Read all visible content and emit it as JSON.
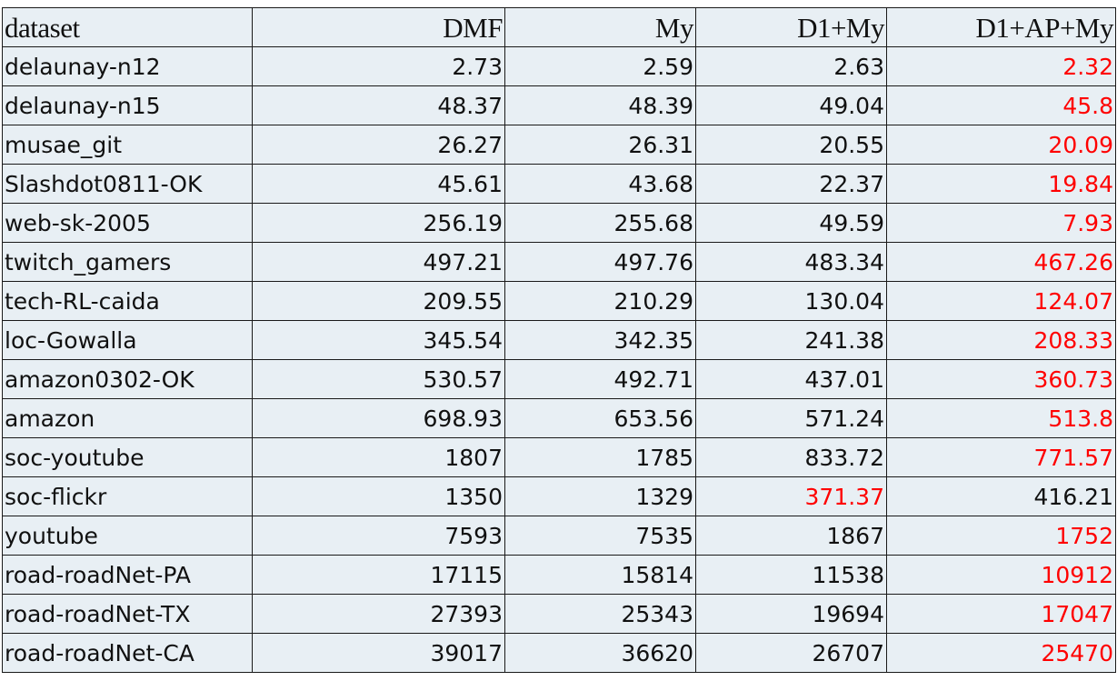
{
  "table": {
    "headers": [
      "dataset",
      "DMF",
      "My",
      "D1+My",
      "D1+AP+My"
    ],
    "rows": [
      {
        "dataset": "delaunay-n12",
        "values": [
          "2.73",
          "2.59",
          "2.63",
          "2.32"
        ],
        "best_col": 3
      },
      {
        "dataset": "delaunay-n15",
        "values": [
          "48.37",
          "48.39",
          "49.04",
          "45.8"
        ],
        "best_col": 3
      },
      {
        "dataset": "musae_git",
        "values": [
          "26.27",
          "26.31",
          "20.55",
          "20.09"
        ],
        "best_col": 3
      },
      {
        "dataset": "Slashdot0811-OK",
        "values": [
          "45.61",
          "43.68",
          "22.37",
          "19.84"
        ],
        "best_col": 3
      },
      {
        "dataset": "web-sk-2005",
        "values": [
          "256.19",
          "255.68",
          "49.59",
          "7.93"
        ],
        "best_col": 3
      },
      {
        "dataset": "twitch_gamers",
        "values": [
          "497.21",
          "497.76",
          "483.34",
          "467.26"
        ],
        "best_col": 3
      },
      {
        "dataset": "tech-RL-caida",
        "values": [
          "209.55",
          "210.29",
          "130.04",
          "124.07"
        ],
        "best_col": 3
      },
      {
        "dataset": "loc-Gowalla",
        "values": [
          "345.54",
          "342.35",
          "241.38",
          "208.33"
        ],
        "best_col": 3
      },
      {
        "dataset": "amazon0302-OK",
        "values": [
          "530.57",
          "492.71",
          "437.01",
          "360.73"
        ],
        "best_col": 3
      },
      {
        "dataset": "amazon",
        "values": [
          "698.93",
          "653.56",
          "571.24",
          "513.8"
        ],
        "best_col": 3
      },
      {
        "dataset": "soc-youtube",
        "values": [
          "1807",
          "1785",
          "833.72",
          "771.57"
        ],
        "best_col": 3
      },
      {
        "dataset": "soc-flickr",
        "values": [
          "1350",
          "1329",
          "371.37",
          "416.21"
        ],
        "best_col": 2
      },
      {
        "dataset": "youtube",
        "values": [
          "7593",
          "7535",
          "1867",
          "1752"
        ],
        "best_col": 3
      },
      {
        "dataset": "road-roadNet-PA",
        "values": [
          "17115",
          "15814",
          "11538",
          "10912"
        ],
        "best_col": 3
      },
      {
        "dataset": "road-roadNet-TX",
        "values": [
          "27393",
          "25343",
          "19694",
          "17047"
        ],
        "best_col": 3
      },
      {
        "dataset": "road-roadNet-CA",
        "values": [
          "39017",
          "36620",
          "26707",
          "25470"
        ],
        "best_col": 3
      }
    ]
  },
  "colors": {
    "table_background": "#e8eff4",
    "border": "#1a1a1a",
    "text": "#111111",
    "best_value": "#ff0000"
  }
}
